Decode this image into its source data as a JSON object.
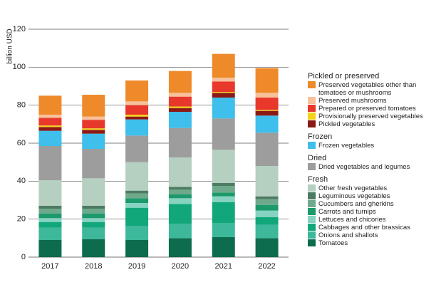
{
  "chart_data": {
    "type": "stacked_bar",
    "y_label": "billion USD",
    "categories": [
      "2017",
      "2018",
      "2019",
      "2020",
      "2021",
      "2022"
    ],
    "ylim": [
      0,
      120
    ],
    "yticks": [
      0,
      20,
      40,
      60,
      80,
      100,
      120
    ],
    "grid": true,
    "series": [
      {
        "name": "Tomatoes",
        "group": "Fresh",
        "color": "#0d6b4e",
        "values": [
          9,
          9.5,
          9,
          10,
          10.5,
          10
        ]
      },
      {
        "name": "Onions and shallots",
        "group": "Fresh",
        "color": "#3db89a",
        "values": [
          6.5,
          6,
          7.5,
          7.5,
          7.5,
          7
        ]
      },
      {
        "name": "Cabbages and other brassicas",
        "group": "Fresh",
        "color": "#11a77a",
        "values": [
          3,
          3,
          9.5,
          10.5,
          11,
          4
        ]
      },
      {
        "name": "Lettuces and chicories",
        "group": "Fresh",
        "color": "#86d3c2",
        "values": [
          2,
          2,
          2.5,
          3,
          3,
          3.5
        ]
      },
      {
        "name": "Carrots and turnips",
        "group": "Fresh",
        "color": "#1c9a6c",
        "values": [
          2.5,
          2.5,
          2.5,
          2,
          2,
          3
        ]
      },
      {
        "name": "Cucumbers and gherkins",
        "group": "Fresh",
        "color": "#6fa98b",
        "values": [
          2.5,
          2.5,
          2.5,
          2.5,
          3.5,
          3
        ]
      },
      {
        "name": "Leguminous vegetables",
        "group": "Fresh",
        "color": "#4d7b62",
        "values": [
          1.5,
          1.5,
          1.5,
          1.5,
          1.5,
          1.5
        ]
      },
      {
        "name": "Other fresh vegetables",
        "group": "Fresh",
        "color": "#b5cfc0",
        "values": [
          13.5,
          14.5,
          15,
          15.5,
          17.5,
          16
        ]
      },
      {
        "name": "Dried vegetables and legumes",
        "group": "Dried",
        "color": "#9d9d9d",
        "values": [
          18,
          15.5,
          14,
          15.5,
          16.5,
          17.5
        ]
      },
      {
        "name": "Frozen vegetables",
        "group": "Frozen",
        "color": "#3fbfeb",
        "values": [
          8,
          8,
          8.5,
          8.5,
          11,
          9
        ]
      },
      {
        "name": "Pickled vegetables",
        "group": "Pickled or preserved",
        "color": "#8b1a17",
        "values": [
          2,
          2,
          1.5,
          2,
          2.5,
          2.5
        ]
      },
      {
        "name": "Provisionally preserved vegetables",
        "group": "Pickled or preserved",
        "color": "#f3d21a",
        "values": [
          0.8,
          0.8,
          1,
          0.8,
          0.5,
          0.5
        ]
      },
      {
        "name": "Prepared or preserved tomatoes",
        "group": "Pickled or preserved",
        "color": "#e8382b",
        "values": [
          4,
          4.5,
          5,
          5.2,
          5.5,
          6.5
        ]
      },
      {
        "name": "Preserved mushrooms",
        "group": "Pickled or preserved",
        "color": "#f7c19c",
        "values": [
          1.7,
          1.7,
          2,
          2,
          2,
          2.5
        ]
      },
      {
        "name": "Preserved vegetables other than tomatoes or mushrooms",
        "group": "Pickled or preserved",
        "color": "#ef8a2b",
        "values": [
          10,
          11.5,
          11,
          11.5,
          12.5,
          13
        ]
      }
    ]
  }
}
